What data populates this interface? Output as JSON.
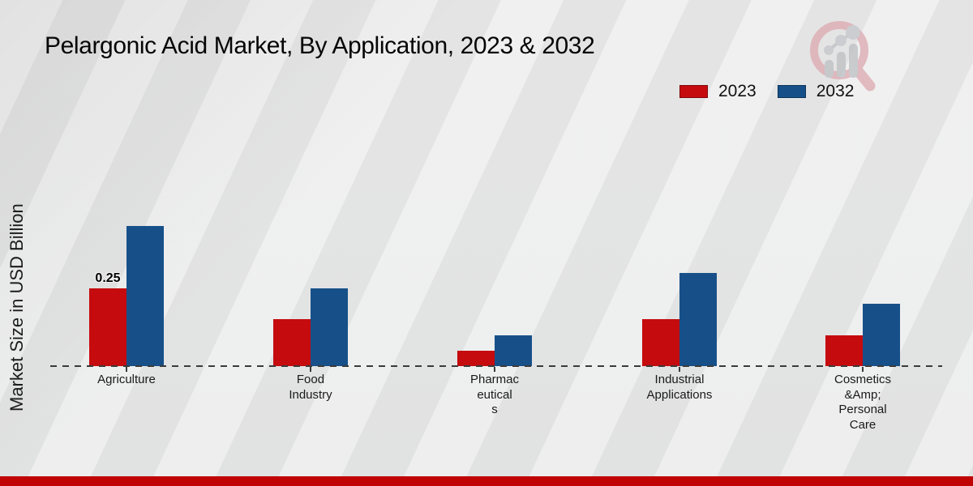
{
  "title": "Pelargonic Acid Market, By Application, 2023 & 2032",
  "y_axis_label": "Market Size in USD Billion",
  "legend": [
    {
      "label": "2023",
      "color": "#c50b0e"
    },
    {
      "label": "2032",
      "color": "#175089"
    }
  ],
  "icons": {
    "watermark": "bar-chart-magnifier-logo"
  },
  "colors": {
    "series_2023": "#c50b0e",
    "series_2032": "#175089",
    "footer_accent": "#c00404",
    "background": "#e9eaea",
    "axis_dash": "#3a3a3a"
  },
  "chart_data": {
    "type": "bar",
    "title": "Pelargonic Acid Market, By Application, 2023 & 2032",
    "xlabel": "",
    "ylabel": "Market Size in USD Billion",
    "ylim": [
      0,
      0.5
    ],
    "grid": false,
    "legend_position": "top-right",
    "baseline_style": "dashed",
    "categories": [
      {
        "name": "Agriculture",
        "lines": [
          "Agriculture"
        ]
      },
      {
        "name": "Food Industry",
        "lines": [
          "Food",
          "Industry"
        ]
      },
      {
        "name": "Pharmaceuticals",
        "lines": [
          "Pharmac",
          "eutical",
          "s"
        ]
      },
      {
        "name": "Industrial Applications",
        "lines": [
          "Industrial",
          "Applications"
        ]
      },
      {
        "name": "Cosmetics &Amp; Personal Care",
        "lines": [
          "Cosmetics",
          "&Amp;",
          "Personal",
          "Care"
        ]
      }
    ],
    "series": [
      {
        "name": "2023",
        "color": "#c50b0e",
        "values": [
          0.25,
          0.15,
          0.05,
          0.15,
          0.1
        ]
      },
      {
        "name": "2032",
        "color": "#175089",
        "values": [
          0.45,
          0.25,
          0.1,
          0.3,
          0.2
        ]
      }
    ],
    "bar_labels": [
      {
        "category_index": 0,
        "series_index": 0,
        "text": "0.25"
      }
    ]
  }
}
